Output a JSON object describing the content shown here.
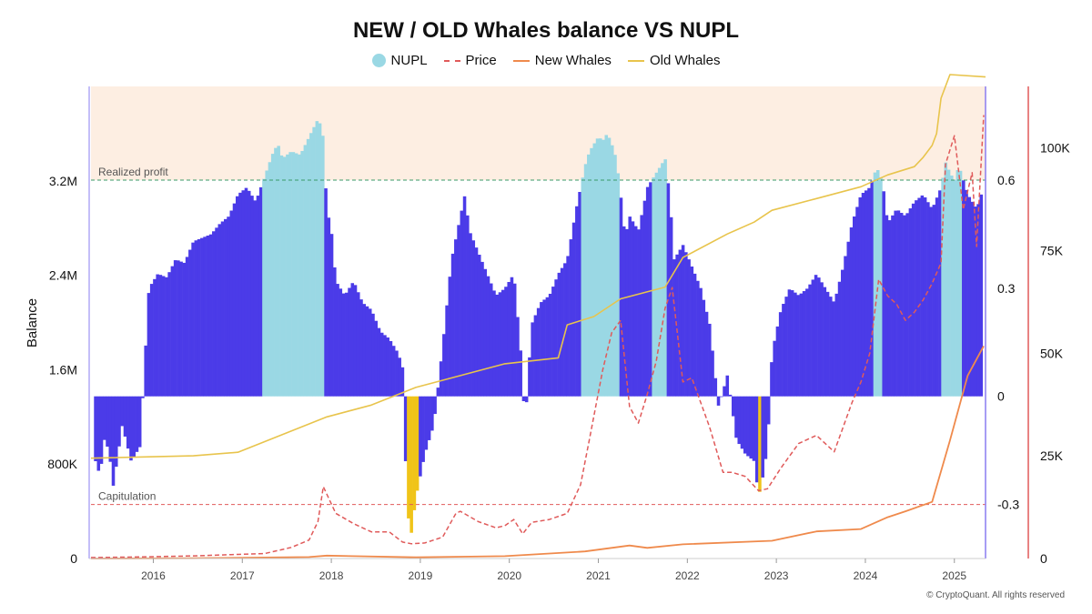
{
  "chart_data": {
    "type": "bar",
    "title": "NEW / OLD Whales balance VS NUPL",
    "legend_position": "top-center",
    "grid": false,
    "legend": [
      {
        "name": "NUPL",
        "style": "dot",
        "color": "#9ad8e4"
      },
      {
        "name": "Price",
        "style": "dash",
        "color": "#e05a5a"
      },
      {
        "name": "New Whales",
        "style": "line",
        "color": "#ef8a4c"
      },
      {
        "name": "Old Whales",
        "style": "line",
        "color": "#e8c44c"
      }
    ],
    "xlim": [
      2015.35,
      2025.4
    ],
    "x_ticks": [
      "2016",
      "2017",
      "2018",
      "2019",
      "2020",
      "2021",
      "2022",
      "2023",
      "2024",
      "2025"
    ],
    "y_left": {
      "label": "Balance",
      "ylim": [
        0,
        4000000
      ],
      "ticks": [
        {
          "v": 0,
          "label": "0"
        },
        {
          "v": 800000,
          "label": "800K"
        },
        {
          "v": 1600000,
          "label": "1.6M"
        },
        {
          "v": 2400000,
          "label": "2.4M"
        },
        {
          "v": 3200000,
          "label": "3.2M"
        }
      ]
    },
    "y_nupl": {
      "ylim": [
        -0.45,
        0.86
      ],
      "ticks": [
        {
          "v": -0.3,
          "label": "-0.3"
        },
        {
          "v": 0,
          "label": "0"
        },
        {
          "v": 0.3,
          "label": "0.3"
        },
        {
          "v": 0.6,
          "label": "0.6"
        }
      ]
    },
    "y_price": {
      "ylim": [
        0,
        115000
      ],
      "ticks": [
        {
          "v": 0,
          "label": "0"
        },
        {
          "v": 25000,
          "label": "25K"
        },
        {
          "v": 50000,
          "label": "50K"
        },
        {
          "v": 75000,
          "label": "75K"
        },
        {
          "v": 100000,
          "label": "100K"
        }
      ]
    },
    "annotations": [
      {
        "text": "Realized profit",
        "nupl": 0.6
      },
      {
        "text": "Capitulation",
        "nupl": -0.3
      }
    ],
    "colors": {
      "neg_below_threshold": "#f0c419",
      "normal": "#4b3be8",
      "profit_zone": "#9ad8e4",
      "zone_fill": "#fdeee2"
    },
    "series": [
      {
        "name": "NUPL",
        "kind": "bar",
        "x": [
          2015.4,
          2015.45,
          2015.5,
          2015.55,
          2015.6,
          2015.7,
          2015.8,
          2015.9,
          2016.0,
          2016.1,
          2016.2,
          2016.3,
          2016.4,
          2016.5,
          2016.6,
          2016.7,
          2016.8,
          2016.9,
          2017.0,
          2017.1,
          2017.2,
          2017.3,
          2017.4,
          2017.45,
          2017.5,
          2017.6,
          2017.7,
          2017.8,
          2017.9,
          2017.95,
          2018.0,
          2018.05,
          2018.1,
          2018.2,
          2018.3,
          2018.4,
          2018.5,
          2018.6,
          2018.7,
          2018.8,
          2018.85,
          2018.9,
          2018.95,
          2019.0,
          2019.1,
          2019.2,
          2019.3,
          2019.4,
          2019.5,
          2019.55,
          2019.6,
          2019.7,
          2019.8,
          2019.9,
          2020.0,
          2020.1,
          2020.2,
          2020.22,
          2020.3,
          2020.4,
          2020.5,
          2020.6,
          2020.7,
          2020.8,
          2020.85,
          2020.9,
          2020.95,
          2021.0,
          2021.05,
          2021.1,
          2021.15,
          2021.2,
          2021.25,
          2021.3,
          2021.35,
          2021.4,
          2021.5,
          2021.6,
          2021.7,
          2021.75,
          2021.8,
          2021.85,
          2021.9,
          2022.0,
          2022.1,
          2022.2,
          2022.3,
          2022.4,
          2022.5,
          2022.6,
          2022.7,
          2022.8,
          2022.85,
          2022.9,
          2022.95,
          2023.0,
          2023.1,
          2023.2,
          2023.3,
          2023.4,
          2023.5,
          2023.6,
          2023.7,
          2023.8,
          2023.9,
          2024.0,
          2024.1,
          2024.15,
          2024.2,
          2024.25,
          2024.3,
          2024.4,
          2024.5,
          2024.6,
          2024.7,
          2024.8,
          2024.9,
          2024.95,
          2025.0,
          2025.05,
          2025.1,
          2025.2,
          2025.3,
          2025.35
        ],
        "values": [
          -0.18,
          -0.22,
          -0.12,
          -0.15,
          -0.25,
          -0.08,
          -0.18,
          -0.14,
          0.3,
          0.34,
          0.33,
          0.38,
          0.37,
          0.43,
          0.44,
          0.45,
          0.48,
          0.5,
          0.56,
          0.58,
          0.54,
          0.61,
          0.68,
          0.7,
          0.66,
          0.68,
          0.67,
          0.72,
          0.77,
          0.74,
          0.52,
          0.46,
          0.32,
          0.28,
          0.32,
          0.26,
          0.24,
          0.18,
          0.16,
          0.12,
          0.08,
          -0.32,
          -0.38,
          -0.28,
          -0.16,
          -0.08,
          0.14,
          0.38,
          0.5,
          0.56,
          0.46,
          0.4,
          0.34,
          0.28,
          0.3,
          0.34,
          0.06,
          -0.1,
          0.2,
          0.26,
          0.28,
          0.34,
          0.38,
          0.52,
          0.58,
          0.64,
          0.68,
          0.7,
          0.72,
          0.71,
          0.73,
          0.7,
          0.66,
          0.56,
          0.44,
          0.5,
          0.46,
          0.58,
          0.62,
          0.64,
          0.66,
          0.56,
          0.38,
          0.42,
          0.36,
          0.3,
          0.2,
          -0.03,
          0.06,
          -0.12,
          -0.16,
          -0.18,
          -0.28,
          -0.22,
          -0.14,
          0.12,
          0.24,
          0.3,
          0.28,
          0.3,
          0.34,
          0.3,
          0.26,
          0.36,
          0.48,
          0.56,
          0.58,
          0.62,
          0.63,
          0.58,
          0.48,
          0.52,
          0.5,
          0.54,
          0.56,
          0.52,
          0.58,
          0.65,
          0.62,
          0.6,
          0.64,
          0.56,
          0.52,
          0.56
        ],
        "threshold_profit": 0.6,
        "threshold_capitulation": -0.25
      },
      {
        "name": "Price",
        "kind": "dashed-line",
        "axis": "price",
        "x": [
          2015.35,
          2015.5,
          2016.0,
          2016.5,
          2017.0,
          2017.3,
          2017.6,
          2017.8,
          2017.9,
          2017.96,
          2018.1,
          2018.3,
          2018.5,
          2018.7,
          2018.85,
          2018.95,
          2019.1,
          2019.3,
          2019.45,
          2019.5,
          2019.7,
          2019.9,
          2020.0,
          2020.1,
          2020.2,
          2020.3,
          2020.5,
          2020.7,
          2020.85,
          2020.95,
          2021.1,
          2021.2,
          2021.3,
          2021.4,
          2021.5,
          2021.6,
          2021.7,
          2021.8,
          2021.88,
          2022.0,
          2022.1,
          2022.3,
          2022.45,
          2022.55,
          2022.7,
          2022.85,
          2022.95,
          2023.1,
          2023.3,
          2023.5,
          2023.7,
          2023.9,
          2024.0,
          2024.1,
          2024.2,
          2024.3,
          2024.4,
          2024.5,
          2024.6,
          2024.7,
          2024.8,
          2024.9,
          2024.95,
          2025.05,
          2025.15,
          2025.25,
          2025.3,
          2025.38
        ],
        "values": [
          250,
          260,
          430,
          650,
          1000,
          1200,
          2700,
          4500,
          9000,
          17500,
          11000,
          8500,
          6500,
          6500,
          4000,
          3600,
          3800,
          5200,
          11000,
          11500,
          9000,
          7500,
          8000,
          9500,
          6000,
          8800,
          9500,
          11000,
          18000,
          29000,
          46000,
          55000,
          58000,
          37000,
          33000,
          40000,
          48000,
          61000,
          66000,
          43000,
          44000,
          32000,
          21000,
          21000,
          20000,
          16500,
          17000,
          22000,
          28000,
          30000,
          26000,
          38000,
          43000,
          50000,
          68000,
          64000,
          62000,
          58000,
          60000,
          63000,
          67000,
          72000,
          96000,
          103000,
          85000,
          94000,
          76000,
          108000
        ]
      },
      {
        "name": "New Whales",
        "kind": "line",
        "axis": "balance",
        "x": [
          2015.35,
          2016.5,
          2017.8,
          2018.0,
          2019.0,
          2020.0,
          2020.9,
          2021.4,
          2021.6,
          2022.0,
          2023.0,
          2023.5,
          2024.0,
          2024.3,
          2024.5,
          2024.8,
          2025.0,
          2025.2,
          2025.38
        ],
        "values": [
          0,
          2000,
          12000,
          25000,
          10000,
          20000,
          60000,
          110000,
          90000,
          120000,
          150000,
          230000,
          250000,
          350000,
          400000,
          480000,
          1000000,
          1550000,
          1800000
        ]
      },
      {
        "name": "Old Whales",
        "kind": "line",
        "axis": "balance",
        "x": [
          2015.35,
          2016.5,
          2017.0,
          2017.5,
          2018.0,
          2018.5,
          2019.0,
          2020.0,
          2020.6,
          2020.7,
          2021.0,
          2021.3,
          2021.8,
          2022.0,
          2022.5,
          2022.8,
          2023.0,
          2023.5,
          2024.0,
          2024.3,
          2024.6,
          2024.7,
          2024.8,
          2024.85,
          2024.9,
          2025.0,
          2025.4
        ],
        "values": [
          850000,
          870000,
          900000,
          1050000,
          1200000,
          1300000,
          1450000,
          1650000,
          1700000,
          1980000,
          2050000,
          2200000,
          2300000,
          2550000,
          2750000,
          2850000,
          2950000,
          3050000,
          3150000,
          3250000,
          3320000,
          3400000,
          3500000,
          3600000,
          3900000,
          4100000,
          4080000
        ]
      }
    ]
  },
  "copyright": "© CryptoQuant. All rights reserved"
}
